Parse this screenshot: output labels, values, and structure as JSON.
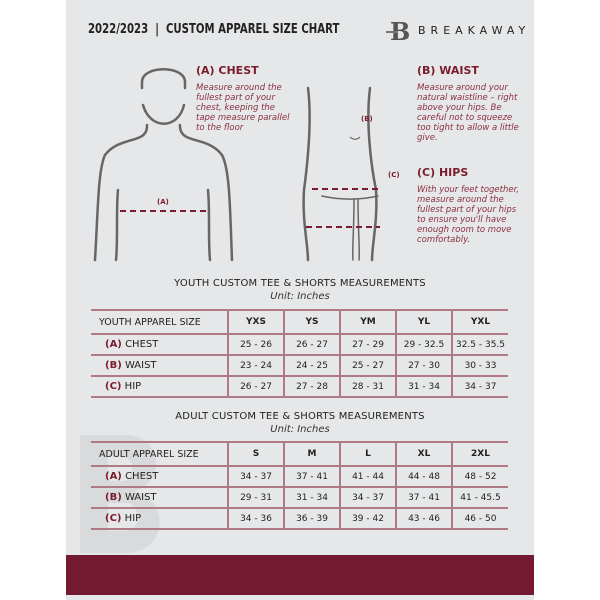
{
  "header": {
    "title": "2022/2023  |  CUSTOM APPAREL SIZE CHART",
    "brand": "BREAKAWAY",
    "logo_letter": "B"
  },
  "guide": {
    "chest": {
      "title": "(A) CHEST",
      "text": "Measure around the fullest part of your chest, keeping the tape measure parallel to the floor",
      "marker": "(A)"
    },
    "waist": {
      "title": "(B) WAIST",
      "text": "Measure around your natural waistline – right above your hips. Be careful not to squeeze too tight to allow a little give.",
      "marker": "(B)"
    },
    "hips": {
      "title": "(C) HIPS",
      "text": "With your feet together, measure around the fullest part of your hips to ensure you'll have enough room to move comfortably.",
      "marker": "(C)"
    }
  },
  "youth": {
    "title": "YOUTH CUSTOM TEE & SHORTS MEASUREMENTS",
    "unit": "Unit: Inches",
    "header": [
      "YOUTH APPAREL SIZE",
      "YXS",
      "YS",
      "YM",
      "YL",
      "YXL"
    ],
    "rows": [
      {
        "letter": "(A)",
        "label": "CHEST",
        "values": [
          "25 - 26",
          "26 - 27",
          "27 - 29",
          "29 - 32.5",
          "32.5 - 35.5"
        ]
      },
      {
        "letter": "(B)",
        "label": "WAIST",
        "values": [
          "23 - 24",
          "24 - 25",
          "25 - 27",
          "27 - 30",
          "30 - 33"
        ]
      },
      {
        "letter": "(C)",
        "label": "HIP",
        "values": [
          "26 - 27",
          "27 - 28",
          "28 - 31",
          "31 - 34",
          "34 - 37"
        ]
      }
    ]
  },
  "adult": {
    "title": "ADULT CUSTOM TEE & SHORTS MEASUREMENTS",
    "unit": "Unit: Inches",
    "header": [
      "ADULT APPAREL SIZE",
      "S",
      "M",
      "L",
      "XL",
      "2XL"
    ],
    "rows": [
      {
        "letter": "(A)",
        "label": "CHEST",
        "values": [
          "34 - 37",
          "37 - 41",
          "41 - 44",
          "44 - 48",
          "48 - 52"
        ]
      },
      {
        "letter": "(B)",
        "label": "WAIST",
        "values": [
          "29 - 31",
          "31 - 34",
          "34 - 37",
          "37 - 41",
          "41 - 45.5"
        ]
      },
      {
        "letter": "(C)",
        "label": "HIP",
        "values": [
          "34 - 36",
          "36 - 39",
          "39 - 42",
          "43 - 46",
          "46 - 50"
        ]
      }
    ]
  },
  "colors": {
    "accent": "#741b31",
    "background": "#e6e7e8"
  }
}
